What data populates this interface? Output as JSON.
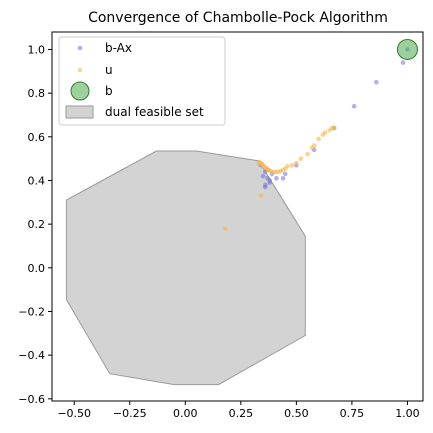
{
  "chart_data": {
    "type": "scatter",
    "title": "Convergence of Chambolle-Pock Algorithm",
    "xlabel": "",
    "ylabel": "",
    "xlim": [
      -0.6,
      1.07
    ],
    "ylim": [
      -0.61,
      1.08
    ],
    "x_ticks": [
      -0.5,
      -0.25,
      0.0,
      0.25,
      0.5,
      0.75,
      1.0
    ],
    "x_tick_labels": [
      "−0.50",
      "−0.25",
      "0.00",
      "0.25",
      "0.50",
      "0.75",
      "1.00"
    ],
    "y_ticks": [
      -0.6,
      -0.4,
      -0.2,
      0.0,
      0.2,
      0.4,
      0.6,
      0.8,
      1.0
    ],
    "y_tick_labels": [
      "−0.6",
      "−0.4",
      "−0.2",
      "0.0",
      "0.2",
      "0.4",
      "0.6",
      "0.8",
      "1.0"
    ],
    "grid": false,
    "legend_position": "top-left",
    "legend": [
      "b-Ax",
      "u",
      "b",
      "dual feasible set"
    ],
    "series": [
      {
        "name": "b-Ax",
        "kind": "scatter",
        "color": "#7070e0",
        "points": [
          [
            1.0,
            1.0
          ],
          [
            0.98,
            0.94
          ],
          [
            0.86,
            0.85
          ],
          [
            0.76,
            0.74
          ],
          [
            0.67,
            0.64
          ],
          [
            0.58,
            0.54
          ],
          [
            0.5,
            0.47
          ],
          [
            0.45,
            0.43
          ],
          [
            0.44,
            0.41
          ],
          [
            0.41,
            0.41
          ],
          [
            0.39,
            0.43
          ],
          [
            0.38,
            0.4
          ],
          [
            0.36,
            0.38
          ],
          [
            0.37,
            0.41
          ],
          [
            0.36,
            0.37
          ],
          [
            0.35,
            0.42
          ],
          [
            0.37,
            0.45
          ],
          [
            0.34,
            0.47
          ],
          [
            0.36,
            0.44
          ],
          [
            0.38,
            0.39
          ]
        ]
      },
      {
        "name": "u",
        "kind": "scatter",
        "color": "#f5b74f",
        "points": [
          [
            0.18,
            0.18
          ],
          [
            0.34,
            0.33
          ],
          [
            0.33,
            0.48
          ],
          [
            0.335,
            0.485
          ],
          [
            0.34,
            0.48
          ],
          [
            0.345,
            0.475
          ],
          [
            0.35,
            0.47
          ],
          [
            0.355,
            0.465
          ],
          [
            0.36,
            0.46
          ],
          [
            0.365,
            0.455
          ],
          [
            0.37,
            0.45
          ],
          [
            0.375,
            0.448
          ],
          [
            0.38,
            0.445
          ],
          [
            0.39,
            0.44
          ],
          [
            0.4,
            0.44
          ],
          [
            0.41,
            0.438
          ],
          [
            0.42,
            0.44
          ],
          [
            0.43,
            0.443
          ],
          [
            0.44,
            0.448
          ],
          [
            0.45,
            0.455
          ],
          [
            0.46,
            0.465
          ],
          [
            0.48,
            0.47
          ],
          [
            0.5,
            0.48
          ],
          [
            0.52,
            0.5
          ],
          [
            0.55,
            0.52
          ],
          [
            0.57,
            0.55
          ],
          [
            0.58,
            0.56
          ],
          [
            0.6,
            0.59
          ],
          [
            0.62,
            0.61
          ],
          [
            0.63,
            0.62
          ],
          [
            0.65,
            0.63
          ],
          [
            0.66,
            0.64
          ],
          [
            0.67,
            0.64
          ]
        ]
      },
      {
        "name": "b",
        "kind": "point",
        "color": "#4aab4a",
        "points": [
          [
            1.0,
            1.0
          ]
        ]
      },
      {
        "name": "dual feasible set",
        "kind": "polygon",
        "color": "#d3d3d3",
        "edge_color": "#999999",
        "points": [
          [
            -0.13,
            0.535
          ],
          [
            0.05,
            0.535
          ],
          [
            0.33,
            0.49
          ],
          [
            0.54,
            0.145
          ],
          [
            0.54,
            -0.31
          ],
          [
            0.15,
            -0.535
          ],
          [
            -0.05,
            -0.535
          ],
          [
            -0.34,
            -0.485
          ],
          [
            -0.535,
            -0.145
          ],
          [
            -0.535,
            0.31
          ]
        ]
      }
    ]
  }
}
